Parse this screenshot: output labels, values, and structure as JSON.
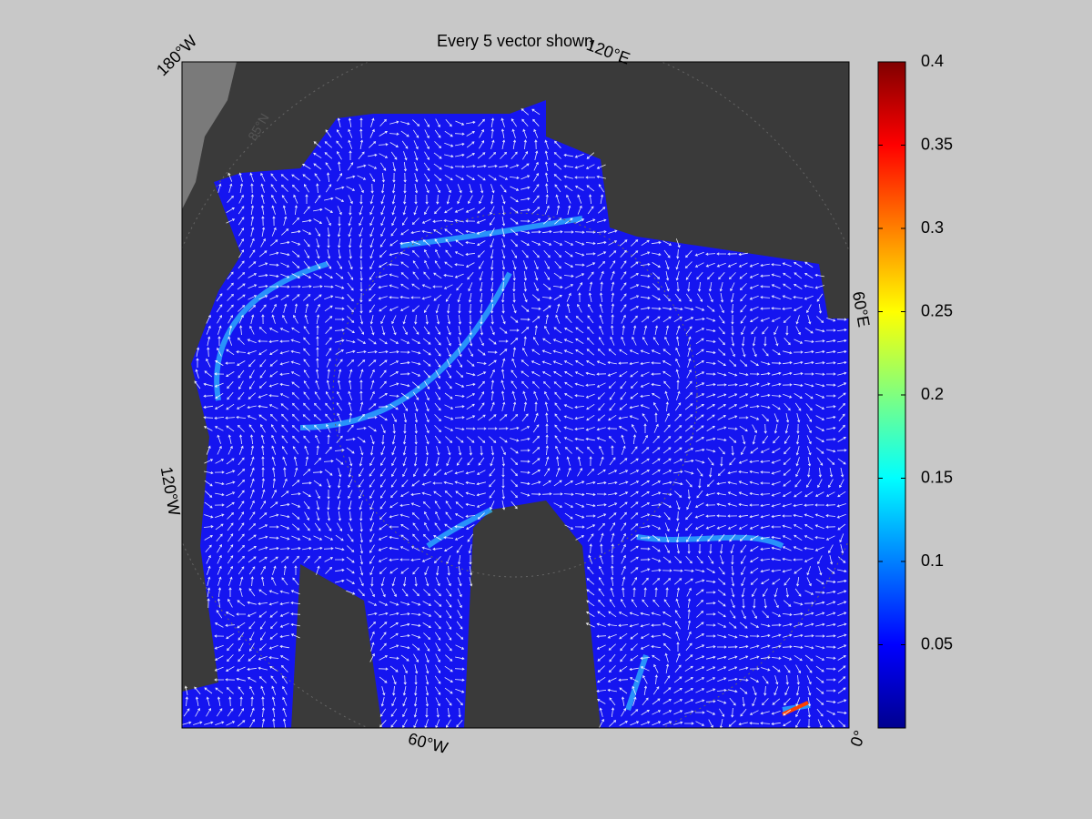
{
  "map": {
    "title": "Every 5 vector shown",
    "graticule_labels": [
      "180°W",
      "120°E",
      "60°E",
      "0°",
      "60°W",
      "120°W",
      "85°N"
    ],
    "colorbar": {
      "lim": [
        0,
        0.4
      ],
      "ticks": [
        0.05,
        0.1,
        0.15,
        0.2,
        0.25,
        0.3,
        0.35,
        0.4
      ]
    }
  }
}
